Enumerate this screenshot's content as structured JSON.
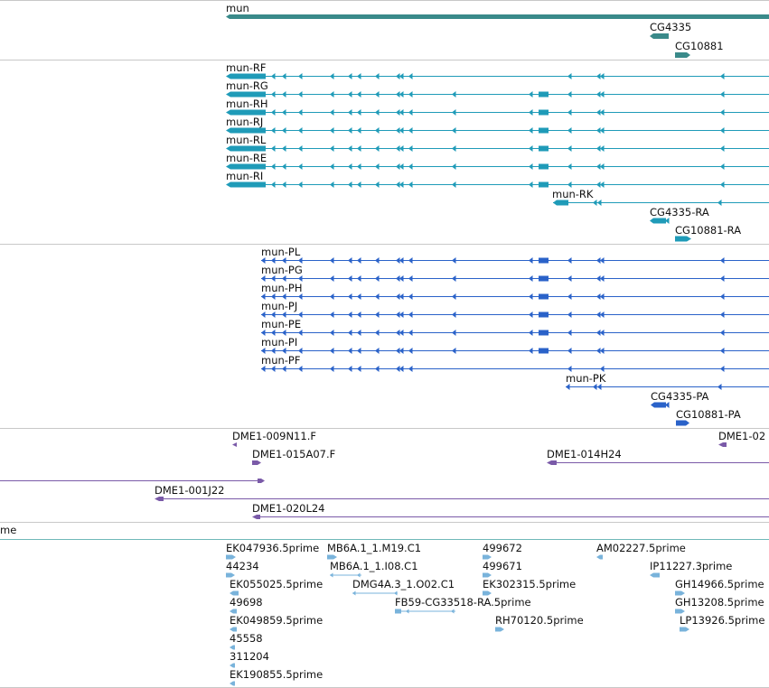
{
  "colors": {
    "gene": "#3a8a8a",
    "transcript": "#1f9bb8",
    "protein": "#2a62c9",
    "bac": "#7a5aa8",
    "est": "#79b3db",
    "separator": "#c8c8c8"
  },
  "tracks": {
    "gene_span": {
      "labels": [
        "mun",
        "CG4335",
        "CG10881"
      ]
    },
    "transcripts": {
      "labels": [
        "mun-RF",
        "mun-RG",
        "mun-RH",
        "mun-RJ",
        "mun-RL",
        "mun-RE",
        "mun-RI",
        "mun-RK",
        "CG4335-RA",
        "CG10881-RA"
      ]
    },
    "proteins": {
      "labels": [
        "mun-PL",
        "mun-PG",
        "mun-PH",
        "mun-PJ",
        "mun-PE",
        "mun-PI",
        "mun-PF",
        "mun-PK",
        "CG4335-PA",
        "CG10881-PA"
      ]
    },
    "bac_clones": {
      "labels": [
        "DME1-009N11.F",
        "DME1-015A07.F",
        "DME1-014H24",
        "DME1-02",
        "DME1-001J22",
        "DME1-020L24"
      ]
    },
    "est_header": {
      "label": "me"
    },
    "ests": {
      "labels": [
        "EK047936.5prime",
        "MB6A.1_1.M19.C1",
        "499672",
        "AM02227.5prime",
        "44234",
        "MB6A.1_1.I08.C1",
        "499671",
        "IP11227.3prime",
        "EK055025.5prime",
        "DMG4A.3_1.O02.C1",
        "EK302315.5prime",
        "GH14966.5prime",
        "49698",
        "FB59-CG33518-RA.5prime",
        "GH13208.5prime",
        "EK049859.5prime",
        "RH70120.5prime",
        "LP13926.5prime",
        "45558",
        "311204",
        "EK190855.5prime"
      ]
    }
  }
}
